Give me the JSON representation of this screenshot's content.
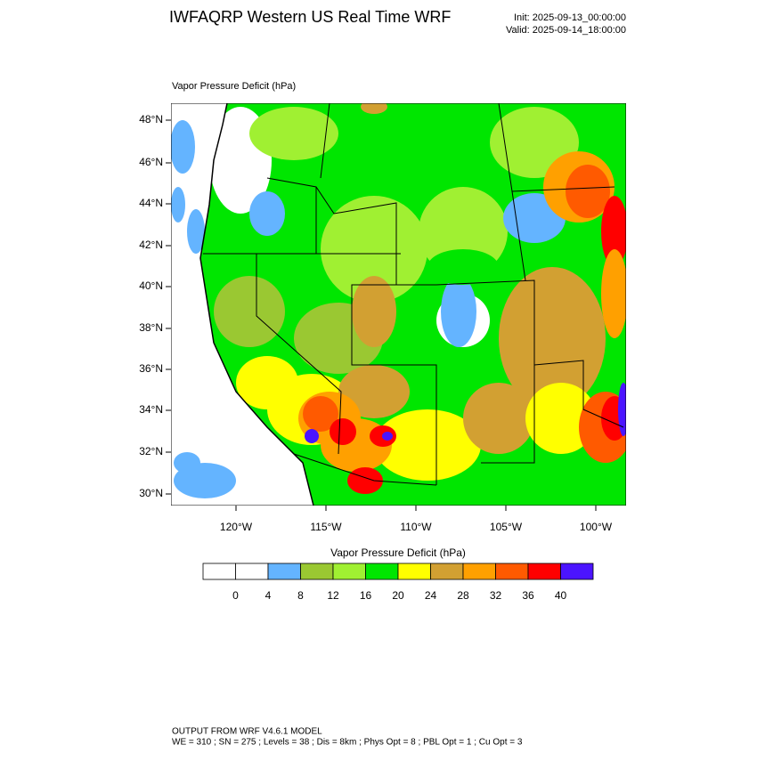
{
  "header": {
    "title": "IWFAQRP Western US Real Time WRF",
    "init": "Init: 2025-09-13_00:00:00",
    "valid": "Valid: 2025-09-14_18:00:00"
  },
  "map": {
    "field_label": "Vapor Pressure Deficit   (hPa)",
    "lat_ticks": [
      "48°N",
      "46°N",
      "44°N",
      "42°N",
      "40°N",
      "38°N",
      "36°N",
      "34°N",
      "32°N",
      "30°N"
    ],
    "lon_ticks": [
      "120°W",
      "115°W",
      "110°W",
      "105°W",
      "100°W"
    ]
  },
  "colorbar": {
    "title": "Vapor Pressure Deficit  (hPa)",
    "levels": [
      0,
      4,
      8,
      12,
      16,
      20,
      24,
      28,
      32,
      36,
      40
    ],
    "colors": [
      "#ffffff",
      "#ffffff",
      "#64b4ff",
      "#9ac832",
      "#a0f032",
      "#00e600",
      "#ffff00",
      "#d2a032",
      "#ffa000",
      "#ff5a00",
      "#ff0000",
      "#4b14ff"
    ]
  },
  "footer": {
    "line1": "OUTPUT FROM WRF V4.6.1 MODEL",
    "line2": "WE = 310 ; SN = 275 ; Levels = 38 ; Dis = 8km ; Phys Opt = 8 ; PBL Opt = 1 ; Cu Opt = 3"
  }
}
